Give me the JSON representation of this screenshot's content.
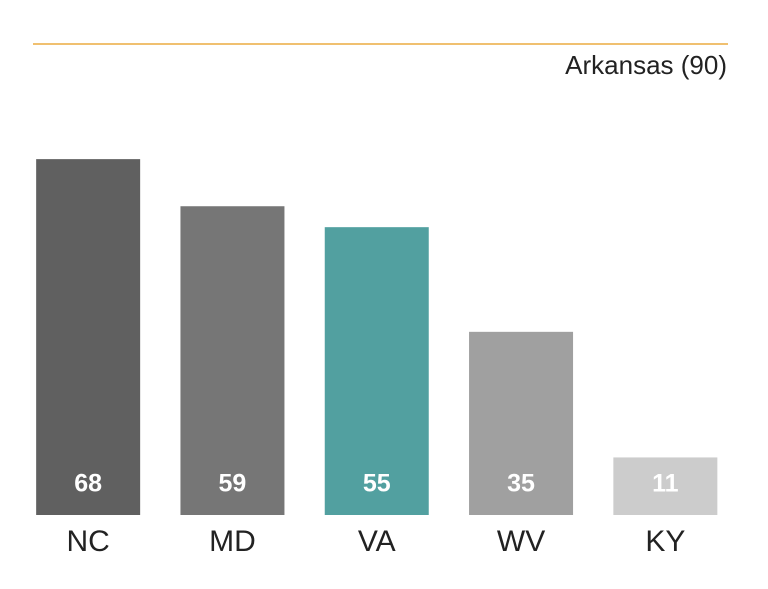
{
  "chart_data": {
    "type": "bar",
    "categories": [
      "NC",
      "MD",
      "VA",
      "WV",
      "KY"
    ],
    "values": [
      68,
      59,
      55,
      35,
      11
    ],
    "colors": [
      "#606060",
      "#767676",
      "#52a0a0",
      "#a0a0a0",
      "#cccccc"
    ],
    "ylim": [
      0,
      90
    ],
    "reference_line": {
      "value": 90,
      "label": "Arkansas (90)",
      "color": "#f0c070"
    }
  }
}
